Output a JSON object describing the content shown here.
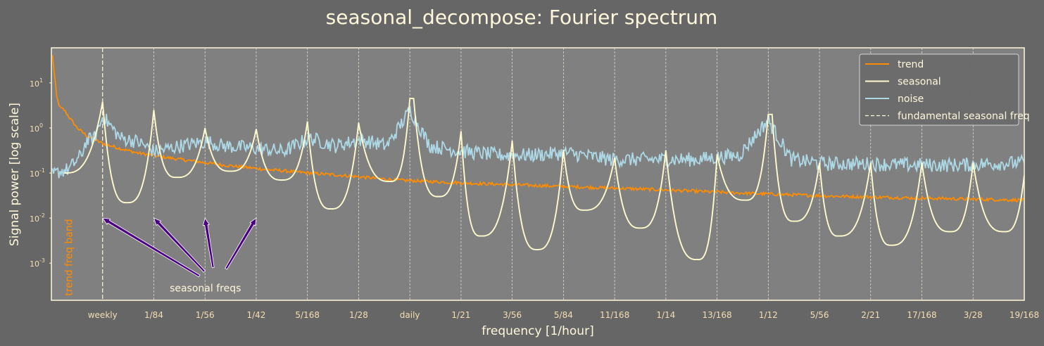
{
  "chart_data": {
    "type": "line",
    "title": "seasonal_decompose: Fourier spectrum",
    "xlabel": "frequency [1/hour]",
    "ylabel": "Signal power [log scale]",
    "x_unit": "1/hour",
    "xlim": [
      0,
      0.11309524
    ],
    "ylim": [
      0.00015,
      60
    ],
    "yscale": "log",
    "grid": "vertical dashed at seasonal frequencies",
    "legend_position": "top-right",
    "x_ticks": [
      {
        "label": "weekly",
        "value": 0.005952
      },
      {
        "label": "1/84",
        "value": 0.011905
      },
      {
        "label": "1/56",
        "value": 0.017857
      },
      {
        "label": "1/42",
        "value": 0.02381
      },
      {
        "label": "5/168",
        "value": 0.029762
      },
      {
        "label": "1/28",
        "value": 0.035714
      },
      {
        "label": "daily",
        "value": 0.041667
      },
      {
        "label": "1/21",
        "value": 0.047619
      },
      {
        "label": "3/56",
        "value": 0.053571
      },
      {
        "label": "5/84",
        "value": 0.059524
      },
      {
        "label": "11/168",
        "value": 0.065476
      },
      {
        "label": "1/14",
        "value": 0.071429
      },
      {
        "label": "13/168",
        "value": 0.077381
      },
      {
        "label": "1/12",
        "value": 0.083333
      },
      {
        "label": "5/56",
        "value": 0.089286
      },
      {
        "label": "2/21",
        "value": 0.095238
      },
      {
        "label": "17/168",
        "value": 0.10119
      },
      {
        "label": "3/28",
        "value": 0.107143
      },
      {
        "label": "19/168",
        "value": 0.113095
      }
    ],
    "y_ticks": [
      {
        "base": "10",
        "exp": "1",
        "value": 10
      },
      {
        "base": "10",
        "exp": "0",
        "value": 1
      },
      {
        "base": "10",
        "exp": "-1",
        "value": 0.1
      },
      {
        "base": "10",
        "exp": "-2",
        "value": 0.01
      },
      {
        "base": "10",
        "exp": "-3",
        "value": 0.001
      }
    ],
    "seasonal_peaks": [
      {
        "x": 0.005952,
        "y": 3.8
      },
      {
        "x": 0.011905,
        "y": 2.5
      },
      {
        "x": 0.017857,
        "y": 1.0
      },
      {
        "x": 0.02381,
        "y": 0.95
      },
      {
        "x": 0.029762,
        "y": 1.4
      },
      {
        "x": 0.035714,
        "y": 1.3
      },
      {
        "x": 0.041667,
        "y": 4.5
      },
      {
        "x": 0.047619,
        "y": 0.85
      },
      {
        "x": 0.053571,
        "y": 0.52
      },
      {
        "x": 0.059524,
        "y": 0.33
      },
      {
        "x": 0.065476,
        "y": 0.22
      },
      {
        "x": 0.071429,
        "y": 0.32
      },
      {
        "x": 0.077381,
        "y": 0.26
      },
      {
        "x": 0.083333,
        "y": 2.0
      },
      {
        "x": 0.089286,
        "y": 0.17
      },
      {
        "x": 0.095238,
        "y": 0.17
      },
      {
        "x": 0.10119,
        "y": 0.17
      },
      {
        "x": 0.107143,
        "y": 0.17
      },
      {
        "x": 0.113095,
        "y": 0.09
      }
    ],
    "seasonal_troughs": [
      {
        "x": 0.0015,
        "y": 0.1
      },
      {
        "x": 0.00878,
        "y": 0.022
      },
      {
        "x": 0.01455,
        "y": 0.08
      },
      {
        "x": 0.0208,
        "y": 0.11
      },
      {
        "x": 0.0268,
        "y": 0.07
      },
      {
        "x": 0.03247,
        "y": 0.016
      },
      {
        "x": 0.0394,
        "y": 0.065
      },
      {
        "x": 0.045,
        "y": 0.03
      },
      {
        "x": 0.0499,
        "y": 0.004
      },
      {
        "x": 0.05646,
        "y": 0.002
      },
      {
        "x": 0.0619,
        "y": 0.015
      },
      {
        "x": 0.06845,
        "y": 0.006
      },
      {
        "x": 0.07513,
        "y": 0.0012
      },
      {
        "x": 0.0807,
        "y": 0.025
      },
      {
        "x": 0.0863,
        "y": 0.0085
      },
      {
        "x": 0.0915,
        "y": 0.004
      },
      {
        "x": 0.0976,
        "y": 0.0025
      },
      {
        "x": 0.1045,
        "y": 0.005
      },
      {
        "x": 0.1108,
        "y": 0.005
      }
    ],
    "seasonal_plateaus": [
      {
        "x": 0.041667,
        "x_end": 0.042113,
        "y": 4.5
      },
      {
        "x": 0.083333,
        "x_end": 0.083779,
        "y": 2.0
      }
    ],
    "series": [
      {
        "name": "trend",
        "color": "#ff8c00",
        "points": [
          [
            0.00012,
            40
          ],
          [
            0.0003,
            20
          ],
          [
            0.0006,
            5
          ],
          [
            0.001,
            2.8
          ],
          [
            0.0015,
            2.5
          ],
          [
            0.002,
            1.8
          ],
          [
            0.003,
            1.0
          ],
          [
            0.004,
            0.7
          ],
          [
            0.005,
            0.55
          ],
          [
            0.006,
            0.45
          ],
          [
            0.008,
            0.35
          ],
          [
            0.01,
            0.28
          ],
          [
            0.012,
            0.24
          ],
          [
            0.015,
            0.2
          ],
          [
            0.02,
            0.15
          ],
          [
            0.025,
            0.12
          ],
          [
            0.03,
            0.1
          ],
          [
            0.035,
            0.085
          ],
          [
            0.04,
            0.07
          ],
          [
            0.05,
            0.058
          ],
          [
            0.06,
            0.05
          ],
          [
            0.07,
            0.043
          ],
          [
            0.08,
            0.036
          ],
          [
            0.09,
            0.031
          ],
          [
            0.1,
            0.028
          ],
          [
            0.113,
            0.025
          ]
        ]
      },
      {
        "name": "seasonal",
        "color": "#fffacd"
      },
      {
        "name": "noise",
        "color": "#add8e6",
        "points": [
          [
            0.0002,
            0.09
          ],
          [
            0.001,
            0.11
          ],
          [
            0.002,
            0.12
          ],
          [
            0.0035,
            0.25
          ],
          [
            0.004,
            0.5
          ],
          [
            0.005,
            0.6
          ],
          [
            0.006,
            1.8
          ],
          [
            0.008,
            0.6
          ],
          [
            0.01,
            0.5
          ],
          [
            0.012,
            0.3
          ],
          [
            0.015,
            0.4
          ],
          [
            0.018,
            0.5
          ],
          [
            0.02,
            0.4
          ],
          [
            0.024,
            0.35
          ],
          [
            0.027,
            0.3
          ],
          [
            0.03,
            0.6
          ],
          [
            0.033,
            0.4
          ],
          [
            0.036,
            0.55
          ],
          [
            0.039,
            0.4
          ],
          [
            0.0417,
            2.5
          ],
          [
            0.044,
            0.4
          ],
          [
            0.048,
            0.3
          ],
          [
            0.052,
            0.25
          ],
          [
            0.056,
            0.25
          ],
          [
            0.06,
            0.28
          ],
          [
            0.065,
            0.2
          ],
          [
            0.07,
            0.2
          ],
          [
            0.075,
            0.2
          ],
          [
            0.08,
            0.25
          ],
          [
            0.0833,
            1.5
          ],
          [
            0.086,
            0.2
          ],
          [
            0.09,
            0.16
          ],
          [
            0.095,
            0.16
          ],
          [
            0.1,
            0.15
          ],
          [
            0.105,
            0.15
          ],
          [
            0.113,
            0.17
          ]
        ]
      }
    ],
    "legend": [
      {
        "label": "trend",
        "style": "solid",
        "color": "#ff8c00"
      },
      {
        "label": "seasonal",
        "style": "solid",
        "color": "#fffacd"
      },
      {
        "label": "noise",
        "style": "solid",
        "color": "#add8e6"
      },
      {
        "label": "fundamental seasonal freq",
        "style": "dashed",
        "color": "#fff8dc"
      }
    ],
    "fundamental_seasonal_freq": 0.005952,
    "annotations": {
      "trend_band_label": "trend freq band",
      "trend_band_x": 0.0024,
      "seasonal_label": "seasonal freqs",
      "seasonal_label_x": 0.0179,
      "seasonal_label_y": 0.00028,
      "arrow_color": "#4b0082",
      "arrow_targets": [
        {
          "x": 0.005952,
          "y": 0.01
        },
        {
          "x": 0.011905,
          "y": 0.01
        },
        {
          "x": 0.017857,
          "y": 0.01
        },
        {
          "x": 0.02381,
          "y": 0.01
        }
      ],
      "arrow_tails": [
        {
          "x": 0.0172,
          "y": 0.00052
        },
        {
          "x": 0.0178,
          "y": 0.00065
        },
        {
          "x": 0.0188,
          "y": 0.0008
        },
        {
          "x": 0.0203,
          "y": 0.00075
        }
      ]
    },
    "colors": {
      "background": "#666666",
      "plot_background": "#808080",
      "axes": "#fff8dc",
      "grid": "#fff8dc"
    }
  }
}
